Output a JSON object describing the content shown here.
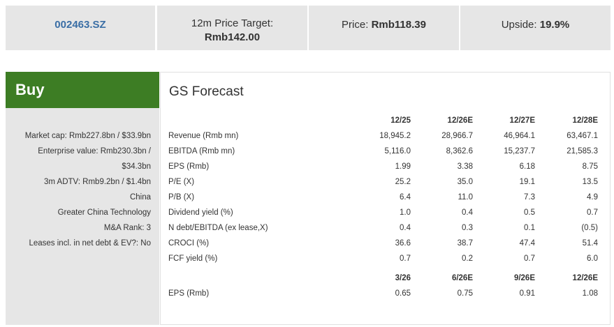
{
  "header": {
    "ticker": "002463.SZ",
    "price_target_label": "12m Price Target:",
    "price_target": "Rmb142.00",
    "price_label": "Price:",
    "price": "Rmb118.39",
    "upside_label": "Upside:",
    "upside": "19.9%"
  },
  "summary": {
    "rating": "Buy",
    "details": [
      "Market cap: Rmb227.8bn / $33.9bn",
      "Enterprise value: Rmb230.3bn / $34.3bn",
      "3m ADTV: Rmb9.2bn / $1.4bn",
      "China",
      "Greater China Technology",
      "M&A Rank: 3",
      "Leases incl. in net debt & EV?: No"
    ]
  },
  "forecast": {
    "title": "GS Forecast",
    "annual": {
      "columns": [
        "12/25",
        "12/26E",
        "12/27E",
        "12/28E"
      ],
      "rows": [
        {
          "label": "Revenue (Rmb mn)",
          "values": [
            "18,945.2",
            "28,966.7",
            "46,964.1",
            "63,467.1"
          ]
        },
        {
          "label": "EBITDA (Rmb mn)",
          "values": [
            "5,116.0",
            "8,362.6",
            "15,237.7",
            "21,585.3"
          ]
        },
        {
          "label": "EPS (Rmb)",
          "values": [
            "1.99",
            "3.38",
            "6.18",
            "8.75"
          ]
        },
        {
          "label": "P/E (X)",
          "values": [
            "25.2",
            "35.0",
            "19.1",
            "13.5"
          ]
        },
        {
          "label": "P/B (X)",
          "values": [
            "6.4",
            "11.0",
            "7.3",
            "4.9"
          ]
        },
        {
          "label": "Dividend yield (%)",
          "values": [
            "1.0",
            "0.4",
            "0.5",
            "0.7"
          ]
        },
        {
          "label": "N debt/EBITDA (ex lease,X)",
          "values": [
            "0.4",
            "0.3",
            "0.1",
            "(0.5)"
          ]
        },
        {
          "label": "CROCI (%)",
          "values": [
            "36.6",
            "38.7",
            "47.4",
            "51.4"
          ]
        },
        {
          "label": "FCF yield (%)",
          "values": [
            "0.7",
            "0.2",
            "0.7",
            "6.0"
          ]
        }
      ]
    },
    "quarterly": {
      "columns": [
        "3/26",
        "6/26E",
        "9/26E",
        "12/26E"
      ],
      "rows": [
        {
          "label": "EPS (Rmb)",
          "values": [
            "0.65",
            "0.75",
            "0.91",
            "1.08"
          ]
        }
      ]
    }
  }
}
